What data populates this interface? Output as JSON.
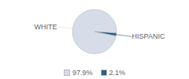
{
  "chart_data": {
    "type": "pie",
    "categories": [
      "WHITE",
      "HISPANIC"
    ],
    "values": [
      97.9,
      2.1
    ],
    "value_labels": [
      "97.9%",
      "2.1%"
    ],
    "colors": [
      "#d6dde8",
      "#2d5f8a"
    ],
    "legend": "bottom"
  }
}
